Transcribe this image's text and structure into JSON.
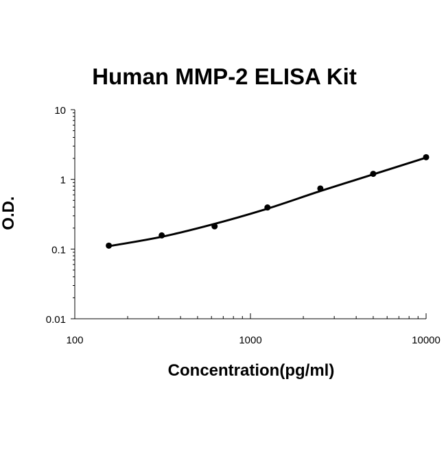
{
  "chart_data": {
    "type": "scatter",
    "title": "Human MMP-2 ELISA Kit",
    "xlabel": "Concentration(pg/ml)",
    "ylabel": "O.D.",
    "x_scale": "log",
    "y_scale": "log",
    "xlim": [
      100,
      10000
    ],
    "ylim": [
      0.01,
      10
    ],
    "x_ticks": [
      "100",
      "1000",
      "10000"
    ],
    "y_ticks": [
      "0.01",
      "0.1",
      "1",
      "10"
    ],
    "grid": false,
    "legend": "none",
    "series": [
      {
        "points": [
          {
            "x": 156.25,
            "y": 0.112
          },
          {
            "x": 312.5,
            "y": 0.157
          },
          {
            "x": 625,
            "y": 0.212
          },
          {
            "x": 1250,
            "y": 0.395
          },
          {
            "x": 2500,
            "y": 0.74
          },
          {
            "x": 5000,
            "y": 1.2
          },
          {
            "x": 10000,
            "y": 2.08
          }
        ],
        "fit_curve": {
          "type": "smooth",
          "x": [
            156.25,
            312.5,
            625,
            1250,
            2500,
            5000,
            10000
          ],
          "y": [
            0.11,
            0.15,
            0.23,
            0.38,
            0.68,
            1.18,
            2.05
          ]
        }
      }
    ],
    "colors": {
      "line": "#000000",
      "marker": "#000000",
      "axis": "#000000"
    }
  }
}
